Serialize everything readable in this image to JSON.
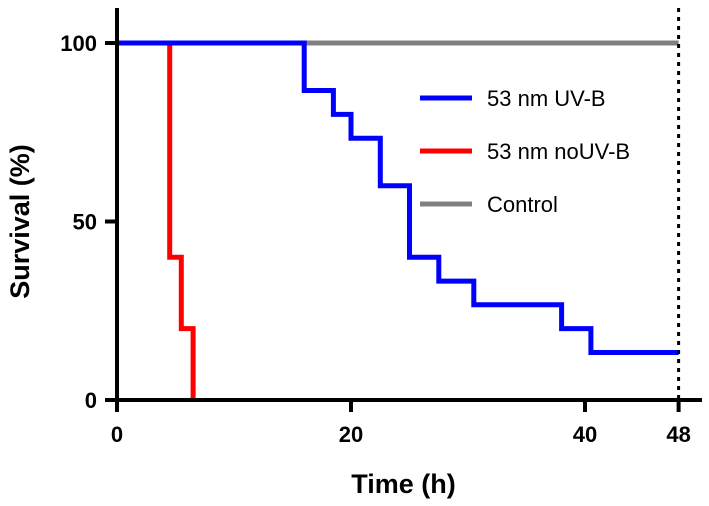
{
  "chart_data": {
    "type": "line",
    "step": true,
    "xlabel": "Time (h)",
    "ylabel": "Survival (%)",
    "xlim": [
      0,
      50
    ],
    "ylim": [
      0,
      100
    ],
    "x_ticks": [
      0,
      20,
      40,
      48
    ],
    "y_ticks": [
      0,
      50,
      100
    ],
    "reference_line": {
      "x": 48,
      "style": "dotted"
    },
    "grid": false,
    "legend_position": "upper-right",
    "series": [
      {
        "name": "53 nm UV-B",
        "color": "#0000ff",
        "points": [
          [
            0,
            100
          ],
          [
            16,
            100
          ],
          [
            16,
            86.7
          ],
          [
            18.5,
            86.7
          ],
          [
            18.5,
            80
          ],
          [
            20,
            80
          ],
          [
            20,
            73.3
          ],
          [
            22.5,
            73.3
          ],
          [
            22.5,
            60
          ],
          [
            25,
            60
          ],
          [
            25,
            40
          ],
          [
            27.5,
            40
          ],
          [
            27.5,
            33.3
          ],
          [
            30.5,
            33.3
          ],
          [
            30.5,
            26.7
          ],
          [
            38,
            26.7
          ],
          [
            38,
            20
          ],
          [
            40.5,
            20
          ],
          [
            40.5,
            13.3
          ],
          [
            48,
            13.3
          ]
        ]
      },
      {
        "name": "53 nm noUV-B",
        "color": "#ff0000",
        "points": [
          [
            0,
            100
          ],
          [
            4.5,
            100
          ],
          [
            4.5,
            40
          ],
          [
            5.5,
            40
          ],
          [
            5.5,
            20
          ],
          [
            6.5,
            20
          ],
          [
            6.5,
            0
          ]
        ]
      },
      {
        "name": "Control",
        "color": "#808080",
        "points": [
          [
            0,
            100
          ],
          [
            48,
            100
          ]
        ]
      }
    ]
  }
}
